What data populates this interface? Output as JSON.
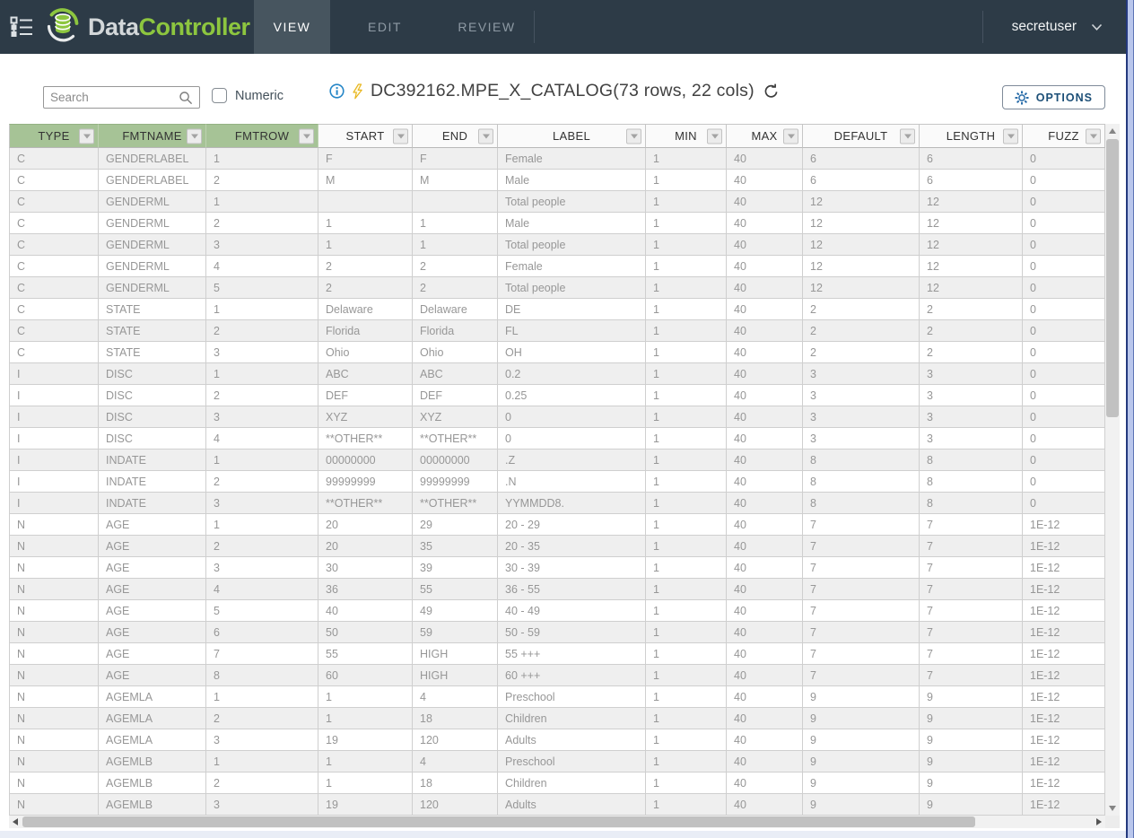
{
  "navbar": {
    "brand": {
      "data": "Data",
      "controller": "Controller"
    },
    "tabs": [
      {
        "label": "VIEW",
        "active": true
      },
      {
        "label": "EDIT",
        "active": false
      },
      {
        "label": "REVIEW",
        "active": false
      }
    ],
    "user": "secretuser"
  },
  "toolbar": {
    "search_placeholder": "Search",
    "numeric_label": "Numeric",
    "title": "DC392162.MPE_X_CATALOG(73 rows, 22 cols)",
    "options_label": "OPTIONS"
  },
  "icons": {
    "tree": "tree-toggle",
    "search": "magnifier",
    "info": "info-circle",
    "lightning": "lightning-bolt",
    "refresh": "refresh-arrow",
    "gear": "gear",
    "filter": "caret-down",
    "user_chevron": "chevron-down"
  },
  "colors": {
    "navbar_bg": "#2d3b47",
    "active_tab_bg": "#47555f",
    "logo_green": "#8dc63f",
    "header_green": "#a6c396",
    "row_stripe": "#efefef",
    "cell_text": "#979797",
    "accent_blue": "#2586c7",
    "options_text": "#1c4f77",
    "bolt_yellow": "#e8b61e"
  },
  "table": {
    "columns": [
      {
        "label": "TYPE",
        "green": true
      },
      {
        "label": "FMTNAME",
        "green": true
      },
      {
        "label": "FMTROW",
        "green": true
      },
      {
        "label": "START",
        "green": false
      },
      {
        "label": "END",
        "green": false
      },
      {
        "label": "LABEL",
        "green": false
      },
      {
        "label": "MIN",
        "green": false
      },
      {
        "label": "MAX",
        "green": false
      },
      {
        "label": "DEFAULT",
        "green": false
      },
      {
        "label": "LENGTH",
        "green": false
      },
      {
        "label": "FUZZ",
        "green": false
      }
    ],
    "rows": [
      [
        "C",
        "GENDERLABEL",
        "1",
        "F",
        "F",
        "Female",
        "1",
        "40",
        "6",
        "6",
        "0"
      ],
      [
        "C",
        "GENDERLABEL",
        "2",
        "M",
        "M",
        "Male",
        "1",
        "40",
        "6",
        "6",
        "0"
      ],
      [
        "C",
        "GENDERML",
        "1",
        "",
        "",
        "Total people",
        "1",
        "40",
        "12",
        "12",
        "0"
      ],
      [
        "C",
        "GENDERML",
        "2",
        "1",
        "1",
        "Male",
        "1",
        "40",
        "12",
        "12",
        "0"
      ],
      [
        "C",
        "GENDERML",
        "3",
        "1",
        "1",
        "Total people",
        "1",
        "40",
        "12",
        "12",
        "0"
      ],
      [
        "C",
        "GENDERML",
        "4",
        "2",
        "2",
        "Female",
        "1",
        "40",
        "12",
        "12",
        "0"
      ],
      [
        "C",
        "GENDERML",
        "5",
        "2",
        "2",
        "Total people",
        "1",
        "40",
        "12",
        "12",
        "0"
      ],
      [
        "C",
        "STATE",
        "1",
        "Delaware",
        "Delaware",
        "DE",
        "1",
        "40",
        "2",
        "2",
        "0"
      ],
      [
        "C",
        "STATE",
        "2",
        "Florida",
        "Florida",
        "FL",
        "1",
        "40",
        "2",
        "2",
        "0"
      ],
      [
        "C",
        "STATE",
        "3",
        "Ohio",
        "Ohio",
        "OH",
        "1",
        "40",
        "2",
        "2",
        "0"
      ],
      [
        "I",
        "DISC",
        "1",
        "ABC",
        "ABC",
        "0.2",
        "1",
        "40",
        "3",
        "3",
        "0"
      ],
      [
        "I",
        "DISC",
        "2",
        "DEF",
        "DEF",
        "0.25",
        "1",
        "40",
        "3",
        "3",
        "0"
      ],
      [
        "I",
        "DISC",
        "3",
        "XYZ",
        "XYZ",
        "0",
        "1",
        "40",
        "3",
        "3",
        "0"
      ],
      [
        "I",
        "DISC",
        "4",
        "**OTHER**",
        "**OTHER**",
        "0",
        "1",
        "40",
        "3",
        "3",
        "0"
      ],
      [
        "I",
        "INDATE",
        "1",
        "00000000",
        "00000000",
        ".Z",
        "1",
        "40",
        "8",
        "8",
        "0"
      ],
      [
        "I",
        "INDATE",
        "2",
        "99999999",
        "99999999",
        ".N",
        "1",
        "40",
        "8",
        "8",
        "0"
      ],
      [
        "I",
        "INDATE",
        "3",
        "**OTHER**",
        "**OTHER**",
        "YYMMDD8.",
        "1",
        "40",
        "8",
        "8",
        "0"
      ],
      [
        "N",
        "AGE",
        "1",
        "20",
        "29",
        "20 - 29",
        "1",
        "40",
        "7",
        "7",
        "1E-12"
      ],
      [
        "N",
        "AGE",
        "2",
        "20",
        "35",
        "20 - 35",
        "1",
        "40",
        "7",
        "7",
        "1E-12"
      ],
      [
        "N",
        "AGE",
        "3",
        "30",
        "39",
        "30 - 39",
        "1",
        "40",
        "7",
        "7",
        "1E-12"
      ],
      [
        "N",
        "AGE",
        "4",
        "36",
        "55",
        "36 - 55",
        "1",
        "40",
        "7",
        "7",
        "1E-12"
      ],
      [
        "N",
        "AGE",
        "5",
        "40",
        "49",
        "40 - 49",
        "1",
        "40",
        "7",
        "7",
        "1E-12"
      ],
      [
        "N",
        "AGE",
        "6",
        "50",
        "59",
        "50 - 59",
        "1",
        "40",
        "7",
        "7",
        "1E-12"
      ],
      [
        "N",
        "AGE",
        "7",
        "55",
        "HIGH",
        "55 +++",
        "1",
        "40",
        "7",
        "7",
        "1E-12"
      ],
      [
        "N",
        "AGE",
        "8",
        "60",
        "HIGH",
        "60 +++",
        "1",
        "40",
        "7",
        "7",
        "1E-12"
      ],
      [
        "N",
        "AGEMLA",
        "1",
        "1",
        "4",
        "Preschool",
        "1",
        "40",
        "9",
        "9",
        "1E-12"
      ],
      [
        "N",
        "AGEMLA",
        "2",
        "1",
        "18",
        "Children",
        "1",
        "40",
        "9",
        "9",
        "1E-12"
      ],
      [
        "N",
        "AGEMLA",
        "3",
        "19",
        "120",
        "Adults",
        "1",
        "40",
        "9",
        "9",
        "1E-12"
      ],
      [
        "N",
        "AGEMLB",
        "1",
        "1",
        "4",
        "Preschool",
        "1",
        "40",
        "9",
        "9",
        "1E-12"
      ],
      [
        "N",
        "AGEMLB",
        "2",
        "1",
        "18",
        "Children",
        "1",
        "40",
        "9",
        "9",
        "1E-12"
      ],
      [
        "N",
        "AGEMLB",
        "3",
        "19",
        "120",
        "Adults",
        "1",
        "40",
        "9",
        "9",
        "1E-12"
      ]
    ]
  }
}
